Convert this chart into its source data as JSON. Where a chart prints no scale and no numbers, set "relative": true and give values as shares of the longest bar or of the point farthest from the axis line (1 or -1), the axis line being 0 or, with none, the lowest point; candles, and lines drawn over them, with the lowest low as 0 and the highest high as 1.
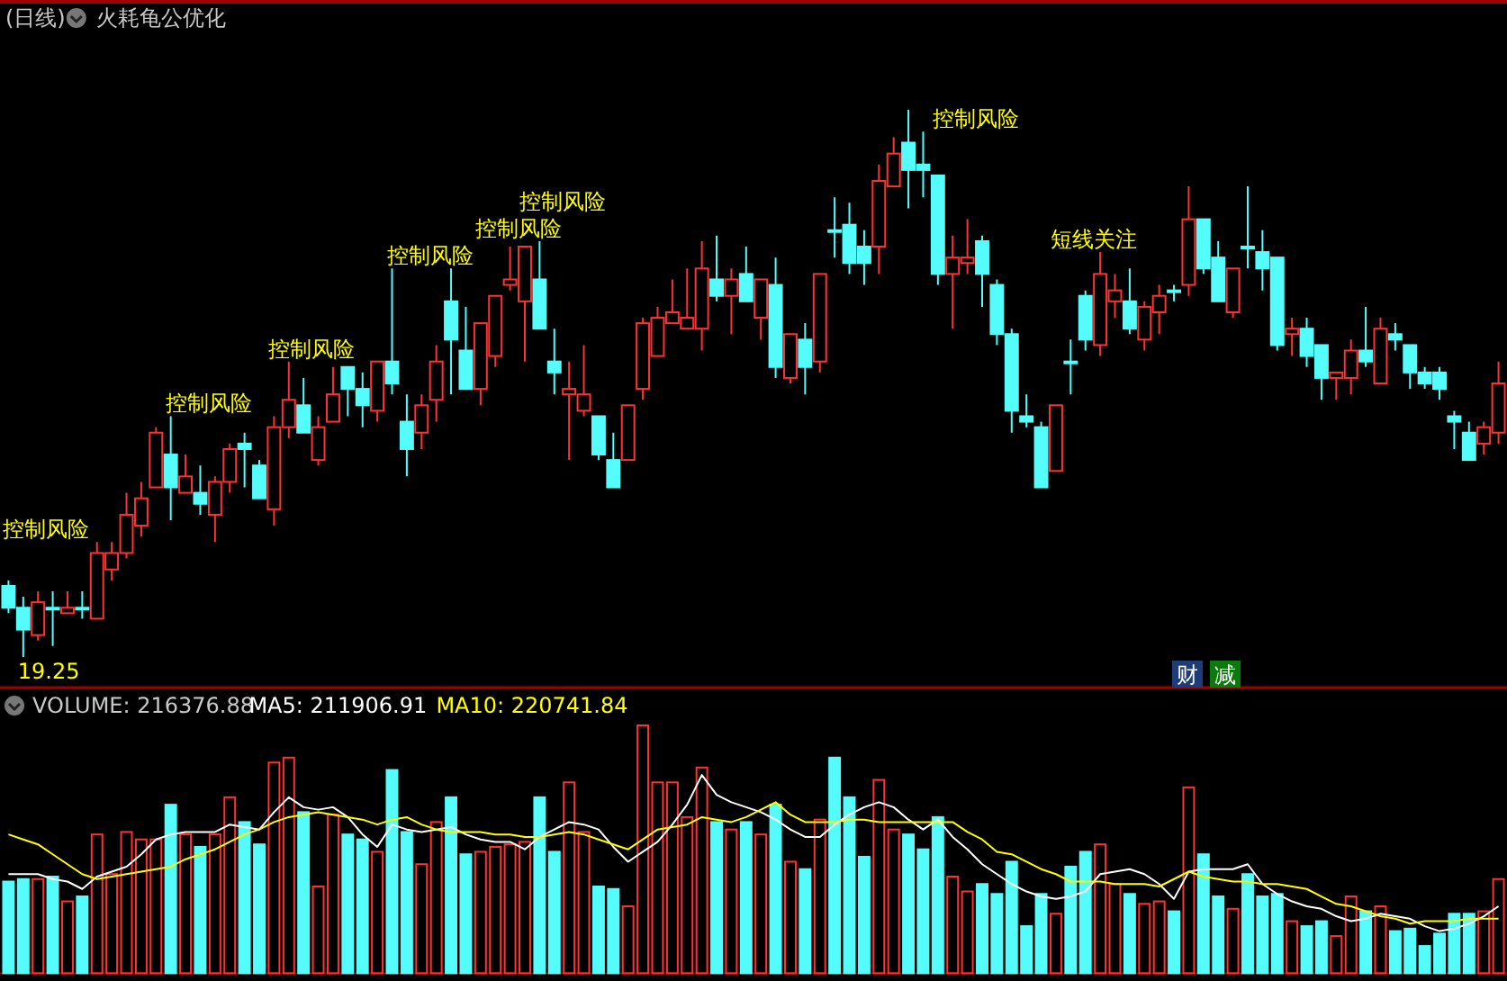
{
  "chart_data": [
    {
      "type": "candlestick",
      "title": "(日线)",
      "subtitle": "火耗龟公优化",
      "relative": true,
      "categories": [
        null,
        null,
        null,
        null,
        null,
        null,
        null,
        null,
        null,
        null,
        null,
        null,
        null,
        null,
        null,
        null,
        null,
        null,
        null,
        null,
        null,
        null,
        null,
        null,
        null,
        null,
        null,
        null,
        null,
        null,
        null,
        null,
        null,
        null,
        null,
        null,
        null,
        null,
        null,
        null,
        null,
        null,
        null,
        null,
        null,
        null,
        null,
        null,
        null,
        null,
        null,
        null,
        null,
        null,
        null,
        null,
        null,
        null,
        null,
        null,
        null,
        null,
        null,
        null,
        null,
        null,
        null,
        null,
        null,
        null,
        null,
        null,
        null,
        null,
        null,
        null,
        null,
        null,
        null,
        null,
        null,
        null,
        null,
        null,
        null,
        null,
        null,
        null,
        null,
        null,
        null,
        null,
        null,
        null,
        null,
        null,
        null,
        null,
        null,
        null,
        null,
        null
      ],
      "ohlc": [
        [
          0.13,
          0.14,
          0.08,
          0.09
        ],
        [
          0.09,
          0.11,
          0,
          0.05
        ],
        [
          0.04,
          0.12,
          0.03,
          0.1
        ],
        [
          0.09,
          0.12,
          0.02,
          0.09
        ],
        [
          0.08,
          0.12,
          0.08,
          0.09
        ],
        [
          0.09,
          0.12,
          0.07,
          0.09
        ],
        [
          0.07,
          0.21,
          0.07,
          0.19
        ],
        [
          0.16,
          0.21,
          0.14,
          0.19
        ],
        [
          0.19,
          0.3,
          0.18,
          0.26
        ],
        [
          0.24,
          0.32,
          0.22,
          0.29
        ],
        [
          0.31,
          0.42,
          0.31,
          0.41
        ],
        [
          0.37,
          0.44,
          0.25,
          0.31
        ],
        [
          0.3,
          0.37,
          0.3,
          0.33
        ],
        [
          0.3,
          0.35,
          0.26,
          0.28
        ],
        [
          0.26,
          0.33,
          0.21,
          0.32
        ],
        [
          0.32,
          0.39,
          0.3,
          0.38
        ],
        [
          0.39,
          0.41,
          0.31,
          0.38
        ],
        [
          0.35,
          0.36,
          0.29,
          0.29
        ],
        [
          0.27,
          0.44,
          0.24,
          0.42
        ],
        [
          0.42,
          0.54,
          0.4,
          0.47
        ],
        [
          0.46,
          0.51,
          0.41,
          0.41
        ],
        [
          0.36,
          0.44,
          0.35,
          0.42
        ],
        [
          0.43,
          0.53,
          0.43,
          0.48
        ],
        [
          0.53,
          0.53,
          0.44,
          0.49
        ],
        [
          0.49,
          0.52,
          0.42,
          0.46
        ],
        [
          0.45,
          0.54,
          0.43,
          0.54
        ],
        [
          0.54,
          0.71,
          0.48,
          0.5
        ],
        [
          0.43,
          0.48,
          0.33,
          0.38
        ],
        [
          0.41,
          0.48,
          0.38,
          0.46
        ],
        [
          0.47,
          0.57,
          0.43,
          0.54
        ],
        [
          0.65,
          0.71,
          0.48,
          0.58
        ],
        [
          0.56,
          0.64,
          0.49,
          0.49
        ],
        [
          0.49,
          0.61,
          0.46,
          0.61
        ],
        [
          0.55,
          0.66,
          0.53,
          0.66
        ],
        [
          0.68,
          0.75,
          0.67,
          0.69
        ],
        [
          0.65,
          0.75,
          0.54,
          0.75
        ],
        [
          0.69,
          0.76,
          0.6,
          0.6
        ],
        [
          0.54,
          0.6,
          0.48,
          0.52
        ],
        [
          0.48,
          0.54,
          0.36,
          0.49
        ],
        [
          0.45,
          0.57,
          0.44,
          0.48
        ],
        [
          0.44,
          0.44,
          0.36,
          0.37
        ],
        [
          0.36,
          0.41,
          0.31,
          0.31
        ],
        [
          0.36,
          0.46,
          0.36,
          0.46
        ],
        [
          0.49,
          0.62,
          0.47,
          0.61
        ],
        [
          0.55,
          0.64,
          0.55,
          0.62
        ],
        [
          0.61,
          0.69,
          0.61,
          0.63
        ],
        [
          0.6,
          0.71,
          0.6,
          0.62
        ],
        [
          0.6,
          0.76,
          0.56,
          0.71
        ],
        [
          0.69,
          0.77,
          0.65,
          0.66
        ],
        [
          0.66,
          0.71,
          0.59,
          0.69
        ],
        [
          0.7,
          0.75,
          0.65,
          0.65
        ],
        [
          0.62,
          0.69,
          0.58,
          0.69
        ],
        [
          0.68,
          0.73,
          0.51,
          0.53
        ],
        [
          0.51,
          0.59,
          0.5,
          0.59
        ],
        [
          0.58,
          0.61,
          0.48,
          0.53
        ],
        [
          0.54,
          0.7,
          0.52,
          0.7
        ],
        [
          0.78,
          0.84,
          0.73,
          0.78
        ],
        [
          0.79,
          0.83,
          0.7,
          0.72
        ],
        [
          0.75,
          0.78,
          0.68,
          0.72
        ],
        [
          0.75,
          0.9,
          0.7,
          0.87
        ],
        [
          0.86,
          0.95,
          0.86,
          0.92
        ],
        [
          0.94,
          1,
          0.82,
          0.89
        ],
        [
          0.9,
          0.96,
          0.84,
          0.89
        ],
        [
          0.88,
          0.88,
          0.68,
          0.7
        ],
        [
          0.7,
          0.77,
          0.6,
          0.73
        ],
        [
          0.72,
          0.8,
          0.7,
          0.73
        ],
        [
          0.76,
          0.77,
          0.64,
          0.7
        ],
        [
          0.68,
          0.69,
          0.57,
          0.59
        ],
        [
          0.59,
          0.6,
          0.41,
          0.45
        ],
        [
          0.44,
          0.48,
          0.42,
          0.43
        ],
        [
          0.42,
          0.43,
          0.31,
          0.31
        ],
        [
          0.34,
          0.46,
          0.34,
          0.46
        ],
        [
          0.54,
          0.58,
          0.48,
          0.54
        ],
        [
          0.66,
          0.67,
          0.56,
          0.58
        ],
        [
          0.57,
          0.74,
          0.55,
          0.7
        ],
        [
          0.65,
          0.7,
          0.62,
          0.67
        ],
        [
          0.65,
          0.71,
          0.59,
          0.6
        ],
        [
          0.58,
          0.65,
          0.56,
          0.64
        ],
        [
          0.63,
          0.68,
          0.59,
          0.66
        ],
        [
          0.67,
          0.68,
          0.65,
          0.67
        ],
        [
          0.68,
          0.86,
          0.66,
          0.8
        ],
        [
          0.8,
          0.8,
          0.7,
          0.71
        ],
        [
          0.73,
          0.76,
          0.65,
          0.65
        ],
        [
          0.63,
          0.71,
          0.62,
          0.71
        ],
        [
          0.75,
          0.86,
          0.71,
          0.75
        ],
        [
          0.74,
          0.78,
          0.67,
          0.71
        ],
        [
          0.73,
          0.73,
          0.56,
          0.57
        ],
        [
          0.59,
          0.62,
          0.55,
          0.6
        ],
        [
          0.6,
          0.62,
          0.53,
          0.55
        ],
        [
          0.57,
          0.57,
          0.47,
          0.51
        ],
        [
          0.51,
          0.52,
          0.47,
          0.52
        ],
        [
          0.51,
          0.58,
          0.48,
          0.56
        ],
        [
          0.56,
          0.64,
          0.53,
          0.54
        ],
        [
          0.5,
          0.62,
          0.5,
          0.6
        ],
        [
          0.59,
          0.61,
          0.56,
          0.58
        ],
        [
          0.57,
          0.57,
          0.49,
          0.52
        ],
        [
          0.52,
          0.53,
          0.49,
          0.5
        ],
        [
          0.52,
          0.53,
          0.47,
          0.49
        ],
        [
          0.44,
          0.45,
          0.38,
          0.43
        ],
        [
          0.41,
          0.43,
          0.36,
          0.36
        ],
        [
          0.39,
          0.43,
          0.37,
          0.42
        ],
        [
          0.41,
          0.54,
          0.39,
          0.5
        ]
      ],
      "colors": [
        "#54fcfc",
        "#54fcfc",
        "#ff3232",
        "#54fcfc",
        "#ff3232",
        "#54fcfc",
        "#ff3232",
        "#ff3232",
        "#ff3232",
        "#ff3232",
        "#ff3232",
        "#54fcfc",
        "#ff3232",
        "#54fcfc",
        "#ff3232",
        "#ff3232",
        "#54fcfc",
        "#54fcfc",
        "#ff3232",
        "#ff3232",
        "#54fcfc",
        "#ff3232",
        "#ff3232",
        "#54fcfc",
        "#54fcfc",
        "#ff3232",
        "#54fcfc",
        "#54fcfc",
        "#ff3232",
        "#ff3232",
        "#54fcfc",
        "#54fcfc",
        "#ff3232",
        "#ff3232",
        "#ff3232",
        "#ff3232",
        "#54fcfc",
        "#54fcfc",
        "#ff3232",
        "#ff3232",
        "#54fcfc",
        "#54fcfc",
        "#ff3232",
        "#ff3232",
        "#ff3232",
        "#ff3232",
        "#ff3232",
        "#ff3232",
        "#54fcfc",
        "#ff3232",
        "#54fcfc",
        "#ff3232",
        "#54fcfc",
        "#ff3232",
        "#54fcfc",
        "#ff3232",
        "#54fcfc",
        "#54fcfc",
        "#54fcfc",
        "#ff3232",
        "#ff3232",
        "#54fcfc",
        "#54fcfc",
        "#54fcfc",
        "#ff3232",
        "#ff3232",
        "#54fcfc",
        "#54fcfc",
        "#54fcfc",
        "#54fcfc",
        "#54fcfc",
        "#ff3232",
        "#54fcfc",
        "#54fcfc",
        "#ff3232",
        "#ff3232",
        "#54fcfc",
        "#ff3232",
        "#ff3232",
        "#54fcfc",
        "#ff3232",
        "#54fcfc",
        "#54fcfc",
        "#ff3232",
        "#54fcfc",
        "#54fcfc",
        "#54fcfc",
        "#ff3232",
        "#54fcfc",
        "#54fcfc",
        "#ff3232",
        "#ff3232",
        "#54fcfc",
        "#ff3232",
        "#54fcfc",
        "#54fcfc",
        "#54fcfc",
        "#54fcfc",
        "#54fcfc",
        "#54fcfc",
        "#ff3232",
        "#ff3232"
      ],
      "value_labels": [
        "控制风险",
        "19.25",
        null,
        null,
        null,
        null,
        null,
        null,
        null,
        null,
        null,
        "控制风险",
        null,
        null,
        null,
        null,
        null,
        null,
        "控制风险",
        null,
        null,
        null,
        null,
        null,
        null,
        null,
        "控制风险",
        null,
        null,
        null,
        null,
        null,
        "控制风险",
        null,
        null,
        "控制风险",
        null,
        null,
        null,
        null,
        null,
        null,
        null,
        null,
        null,
        null,
        null,
        null,
        null,
        null,
        null,
        null,
        null,
        null,
        null,
        null,
        null,
        null,
        null,
        null,
        null,
        null,
        null,
        "控制风险",
        null,
        null,
        null,
        null,
        null,
        null,
        null,
        "短线关注",
        null,
        null,
        null,
        null,
        null,
        null,
        null,
        null,
        null,
        null,
        null,
        null,
        null,
        null,
        null,
        null,
        null,
        null,
        null,
        null,
        null,
        null,
        null,
        null,
        null,
        null,
        null,
        null,
        null,
        null
      ],
      "annotations": [
        "财",
        "减"
      ]
    },
    {
      "type": "bar",
      "title": "VOLUME: 216376.88",
      "relative": true,
      "categories": [
        null,
        null,
        null,
        null,
        null,
        null,
        null,
        null,
        null,
        null,
        null,
        null,
        null,
        null,
        null,
        null,
        null,
        null,
        null,
        null,
        null,
        null,
        null,
        null,
        null,
        null,
        null,
        null,
        null,
        null,
        null,
        null,
        null,
        null,
        null,
        null,
        null,
        null,
        null,
        null,
        null,
        null,
        null,
        null,
        null,
        null,
        null,
        null,
        null,
        null,
        null,
        null,
        null,
        null,
        null,
        null,
        null,
        null,
        null,
        null,
        null,
        null,
        null,
        null,
        null,
        null,
        null,
        null,
        null,
        null,
        null,
        null,
        null,
        null,
        null,
        null,
        null,
        null,
        null,
        null,
        null,
        null,
        null,
        null,
        null,
        null,
        null,
        null,
        null,
        null,
        null,
        null,
        null,
        null,
        null,
        null,
        null,
        null,
        null,
        null,
        null,
        null
      ],
      "series": [
        {
          "type": "bar",
          "colors": [
            "#54fcfc",
            "#54fcfc",
            "#ff3232",
            "#54fcfc",
            "#ff3232",
            "#54fcfc",
            "#ff3232",
            "#ff3232",
            "#ff3232",
            "#ff3232",
            "#ff3232",
            "#54fcfc",
            "#ff3232",
            "#54fcfc",
            "#ff3232",
            "#ff3232",
            "#54fcfc",
            "#54fcfc",
            "#ff3232",
            "#ff3232",
            "#54fcfc",
            "#ff3232",
            "#ff3232",
            "#54fcfc",
            "#54fcfc",
            "#ff3232",
            "#54fcfc",
            "#54fcfc",
            "#ff3232",
            "#ff3232",
            "#54fcfc",
            "#54fcfc",
            "#ff3232",
            "#ff3232",
            "#ff3232",
            "#ff3232",
            "#54fcfc",
            "#54fcfc",
            "#ff3232",
            "#ff3232",
            "#54fcfc",
            "#54fcfc",
            "#ff3232",
            "#ff3232",
            "#ff3232",
            "#ff3232",
            "#ff3232",
            "#ff3232",
            "#54fcfc",
            "#ff3232",
            "#54fcfc",
            "#ff3232",
            "#54fcfc",
            "#ff3232",
            "#54fcfc",
            "#ff3232",
            "#54fcfc",
            "#54fcfc",
            "#54fcfc",
            "#ff3232",
            "#ff3232",
            "#54fcfc",
            "#54fcfc",
            "#54fcfc",
            "#ff3232",
            "#ff3232",
            "#54fcfc",
            "#54fcfc",
            "#54fcfc",
            "#54fcfc",
            "#54fcfc",
            "#ff3232",
            "#54fcfc",
            "#54fcfc",
            "#ff3232",
            "#ff3232",
            "#54fcfc",
            "#ff3232",
            "#ff3232",
            "#54fcfc",
            "#ff3232",
            "#54fcfc",
            "#54fcfc",
            "#ff3232",
            "#54fcfc",
            "#54fcfc",
            "#54fcfc",
            "#ff3232",
            "#54fcfc",
            "#54fcfc",
            "#ff3232",
            "#ff3232",
            "#54fcfc",
            "#ff3232",
            "#54fcfc",
            "#54fcfc",
            "#54fcfc",
            "#54fcfc",
            "#54fcfc",
            "#54fcfc",
            "#ff3232",
            "#ff3232"
          ],
          "values": [
            0.37,
            0.38,
            0.38,
            0.39,
            0.29,
            0.31,
            0.56,
            0.4,
            0.57,
            0.54,
            0.54,
            0.68,
            0.56,
            0.51,
            0.56,
            0.71,
            0.61,
            0.52,
            0.85,
            0.87,
            0.65,
            0.35,
            0.64,
            0.56,
            0.54,
            0.49,
            0.82,
            0.57,
            0.44,
            0.61,
            0.71,
            0.48,
            0.49,
            0.51,
            0.52,
            0.53,
            0.71,
            0.49,
            0.77,
            0.57,
            0.35,
            0.34,
            0.27,
            1,
            0.77,
            0.77,
            0.63,
            0.83,
            0.61,
            0.58,
            0.61,
            0.56,
            0.68,
            0.45,
            0.42,
            0.62,
            0.87,
            0.71,
            0.47,
            0.78,
            0.58,
            0.56,
            0.5,
            0.63,
            0.39,
            0.33,
            0.36,
            0.32,
            0.45,
            0.19,
            0.32,
            0.24,
            0.43,
            0.49,
            0.52,
            0.36,
            0.32,
            0.28,
            0.29,
            0.25,
            0.75,
            0.48,
            0.31,
            0.26,
            0.4,
            0.31,
            0.32,
            0.21,
            0.19,
            0.21,
            0.15,
            0.31,
            0.25,
            0.27,
            0.17,
            0.18,
            0.11,
            0.16,
            0.24,
            0.24,
            0.25,
            0.38
          ]
        },
        {
          "type": "line",
          "name": "MA5: 211906.91",
          "color": "#ffffff",
          "values": [
            0.4,
            0.4,
            0.4,
            0.38,
            0.37,
            0.34,
            0.39,
            0.41,
            0.43,
            0.48,
            0.54,
            0.56,
            0.57,
            0.57,
            0.57,
            0.6,
            0.59,
            0.58,
            0.65,
            0.71,
            0.67,
            0.66,
            0.67,
            0.63,
            0.56,
            0.51,
            0.6,
            0.58,
            0.57,
            0.58,
            0.59,
            0.56,
            0.54,
            0.53,
            0.53,
            0.5,
            0.55,
            0.58,
            0.61,
            0.6,
            0.58,
            0.51,
            0.45,
            0.49,
            0.53,
            0.6,
            0.68,
            0.8,
            0.72,
            0.69,
            0.67,
            0.65,
            0.62,
            0.58,
            0.55,
            0.55,
            0.6,
            0.64,
            0.67,
            0.69,
            0.67,
            0.62,
            0.58,
            0.62,
            0.55,
            0.5,
            0.44,
            0.4,
            0.36,
            0.33,
            0.31,
            0.3,
            0.31,
            0.33,
            0.4,
            0.41,
            0.42,
            0.4,
            0.36,
            0.3,
            0.41,
            0.42,
            0.42,
            0.42,
            0.44,
            0.36,
            0.32,
            0.29,
            0.27,
            0.26,
            0.23,
            0.21,
            0.22,
            0.24,
            0.23,
            0.22,
            0.19,
            0.17,
            0.18,
            0.2,
            0.23,
            0.27
          ]
        },
        {
          "type": "line",
          "name": "MA10: 220741.84",
          "color": "#ffff00",
          "values": [
            0.56,
            0.54,
            0.52,
            0.48,
            0.44,
            0.4,
            0.38,
            0.39,
            0.4,
            0.41,
            0.42,
            0.43,
            0.46,
            0.48,
            0.5,
            0.53,
            0.56,
            0.58,
            0.61,
            0.63,
            0.64,
            0.65,
            0.64,
            0.63,
            0.62,
            0.6,
            0.62,
            0.63,
            0.6,
            0.58,
            0.57,
            0.57,
            0.57,
            0.56,
            0.56,
            0.55,
            0.55,
            0.56,
            0.57,
            0.56,
            0.54,
            0.52,
            0.5,
            0.54,
            0.58,
            0.59,
            0.6,
            0.63,
            0.62,
            0.61,
            0.63,
            0.66,
            0.69,
            0.64,
            0.61,
            0.61,
            0.61,
            0.62,
            0.62,
            0.61,
            0.61,
            0.61,
            0.61,
            0.61,
            0.61,
            0.57,
            0.54,
            0.49,
            0.48,
            0.45,
            0.42,
            0.4,
            0.37,
            0.37,
            0.37,
            0.36,
            0.36,
            0.36,
            0.35,
            0.38,
            0.41,
            0.39,
            0.38,
            0.37,
            0.37,
            0.36,
            0.36,
            0.35,
            0.34,
            0.31,
            0.28,
            0.27,
            0.25,
            0.23,
            0.22,
            0.2,
            0.21,
            0.21,
            0.21,
            0.22,
            0.22,
            0.22
          ]
        }
      ]
    }
  ]
}
